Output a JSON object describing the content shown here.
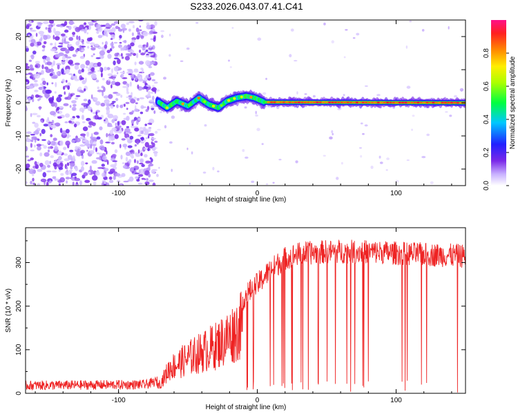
{
  "chart_data": [
    {
      "type": "heatmap",
      "title": "S233.2026.043.07.41.C41",
      "xlabel": "Height of straight line (km)",
      "ylabel": "Frequency (Hz)",
      "xlim": [
        -167,
        150
      ],
      "ylim": [
        -25,
        25
      ],
      "xticks": [
        -100,
        0,
        100
      ],
      "yticks": [
        20,
        10,
        0,
        -10,
        -20
      ],
      "colorbar": {
        "label": "Normalized spectral amplitude",
        "range": [
          0.0,
          1.0
        ],
        "ticks": [
          0.0,
          0.2,
          0.4,
          0.6,
          0.8
        ]
      },
      "features": {
        "noise_region": [
          -167,
          -75
        ],
        "transition_km": -72,
        "signal_start": -72,
        "centerline": [
          {
            "x": -72,
            "y": 0.5
          },
          {
            "x": -65,
            "y": -1.5
          },
          {
            "x": -58,
            "y": 0.5
          },
          {
            "x": -50,
            "y": -1.0
          },
          {
            "x": -42,
            "y": 1.5
          },
          {
            "x": -35,
            "y": -0.5
          },
          {
            "x": -28,
            "y": -1.5
          },
          {
            "x": -22,
            "y": 0.5
          },
          {
            "x": -15,
            "y": 1.5
          },
          {
            "x": -8,
            "y": 2.0
          },
          {
            "x": -2,
            "y": 1.5
          },
          {
            "x": 5,
            "y": 0.2
          },
          {
            "x": 150,
            "y": 0.0
          }
        ]
      }
    },
    {
      "type": "line",
      "xlabel": "Height of straight line (km)",
      "ylabel": "SNR (10 * v/v)",
      "xlim": [
        -167,
        150
      ],
      "ylim": [
        0,
        380
      ],
      "xticks": [
        -100,
        0,
        100
      ],
      "yticks": [
        0,
        100,
        200,
        300
      ],
      "color": "#ee2222",
      "envelope": [
        {
          "x": -167,
          "y": 18
        },
        {
          "x": -80,
          "y": 20
        },
        {
          "x": -70,
          "y": 30
        },
        {
          "x": -63,
          "y": 80
        },
        {
          "x": -50,
          "y": 110
        },
        {
          "x": -40,
          "y": 130
        },
        {
          "x": -30,
          "y": 150
        },
        {
          "x": -20,
          "y": 180
        },
        {
          "x": -10,
          "y": 220
        },
        {
          "x": 0,
          "y": 250
        },
        {
          "x": 10,
          "y": 285
        },
        {
          "x": 20,
          "y": 310
        },
        {
          "x": 30,
          "y": 320
        },
        {
          "x": 50,
          "y": 325
        },
        {
          "x": 80,
          "y": 325
        },
        {
          "x": 110,
          "y": 320
        },
        {
          "x": 150,
          "y": 315
        }
      ]
    }
  ]
}
